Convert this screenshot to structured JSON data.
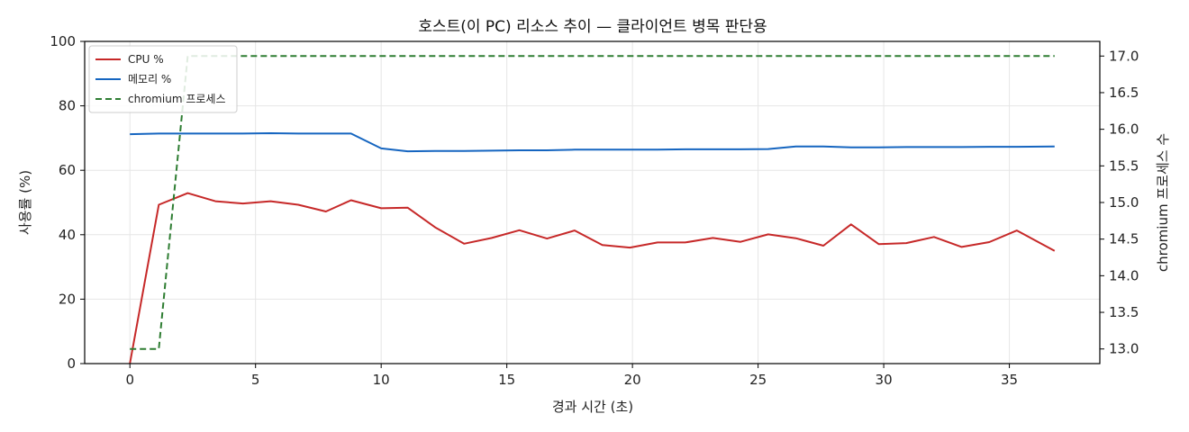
{
  "chart_data": {
    "type": "line",
    "title": "호스트(이 PC) 리소스 추이 — 클라이언트 병목 판단용",
    "xlabel": "경과 시간 (초)",
    "ylabel": "사용률 (%)",
    "y2label": "chromium 프로세스 수",
    "xlim": [
      -1.8,
      38.6
    ],
    "ylim": [
      0,
      100
    ],
    "y2lim": [
      12.8,
      17.2
    ],
    "xticks": [
      "0",
      "5",
      "10",
      "15",
      "20",
      "25",
      "30",
      "35"
    ],
    "yticks": [
      "0",
      "20",
      "40",
      "60",
      "80",
      "100"
    ],
    "y2ticks": [
      "13.0",
      "13.5",
      "14.0",
      "14.5",
      "15.0",
      "15.5",
      "16.0",
      "16.5",
      "17.0"
    ],
    "grid": true,
    "legend_position": "top-left",
    "series": [
      {
        "name": "CPU %",
        "axis": "left",
        "color": "#c62828",
        "style": "solid",
        "x": [
          0,
          1.15,
          2.3,
          3.4,
          4.5,
          5.6,
          6.7,
          7.8,
          8.8,
          10,
          11.05,
          12.15,
          13.3,
          14.4,
          15.5,
          16.6,
          17.7,
          18.8,
          19.9,
          21,
          22.1,
          23.2,
          24.3,
          25.4,
          26.5,
          27.6,
          28.7,
          29.8,
          30.9,
          32,
          33.1,
          34.2,
          35.3,
          36.8
        ],
        "values": [
          0,
          49.3,
          52.9,
          50.4,
          49.7,
          50.4,
          49.3,
          47.2,
          50.7,
          48.2,
          48.4,
          42.3,
          37.2,
          39.0,
          41.4,
          38.8,
          41.3,
          36.8,
          36.0,
          37.6,
          37.6,
          39.0,
          37.8,
          40.1,
          38.9,
          36.6,
          43.2,
          37.1,
          37.4,
          39.3,
          36.2,
          37.7,
          41.3,
          35.0
        ]
      },
      {
        "name": "메모리 %",
        "axis": "left",
        "color": "#1565c0",
        "style": "solid",
        "x": [
          0,
          1.15,
          2.3,
          3.4,
          4.5,
          5.6,
          6.7,
          7.8,
          8.8,
          10,
          11.05,
          12.15,
          13.3,
          14.4,
          15.5,
          16.6,
          17.7,
          18.8,
          19.9,
          21,
          22.1,
          23.2,
          24.3,
          25.4,
          26.5,
          27.6,
          28.7,
          29.8,
          30.9,
          32,
          33.1,
          34.2,
          35.3,
          36.8
        ],
        "values": [
          71.2,
          71.4,
          71.4,
          71.4,
          71.4,
          71.5,
          71.4,
          71.4,
          71.4,
          66.8,
          65.9,
          66.0,
          66.0,
          66.1,
          66.2,
          66.2,
          66.4,
          66.4,
          66.4,
          66.4,
          66.5,
          66.5,
          66.5,
          66.6,
          67.4,
          67.4,
          67.1,
          67.1,
          67.2,
          67.2,
          67.2,
          67.3,
          67.3,
          67.4
        ]
      },
      {
        "name": "chromium 프로세스",
        "axis": "right",
        "color": "#2e7d32",
        "style": "dashed",
        "x": [
          0,
          1.15,
          2.3,
          36.8
        ],
        "values": [
          13,
          13,
          17,
          17
        ]
      }
    ]
  }
}
